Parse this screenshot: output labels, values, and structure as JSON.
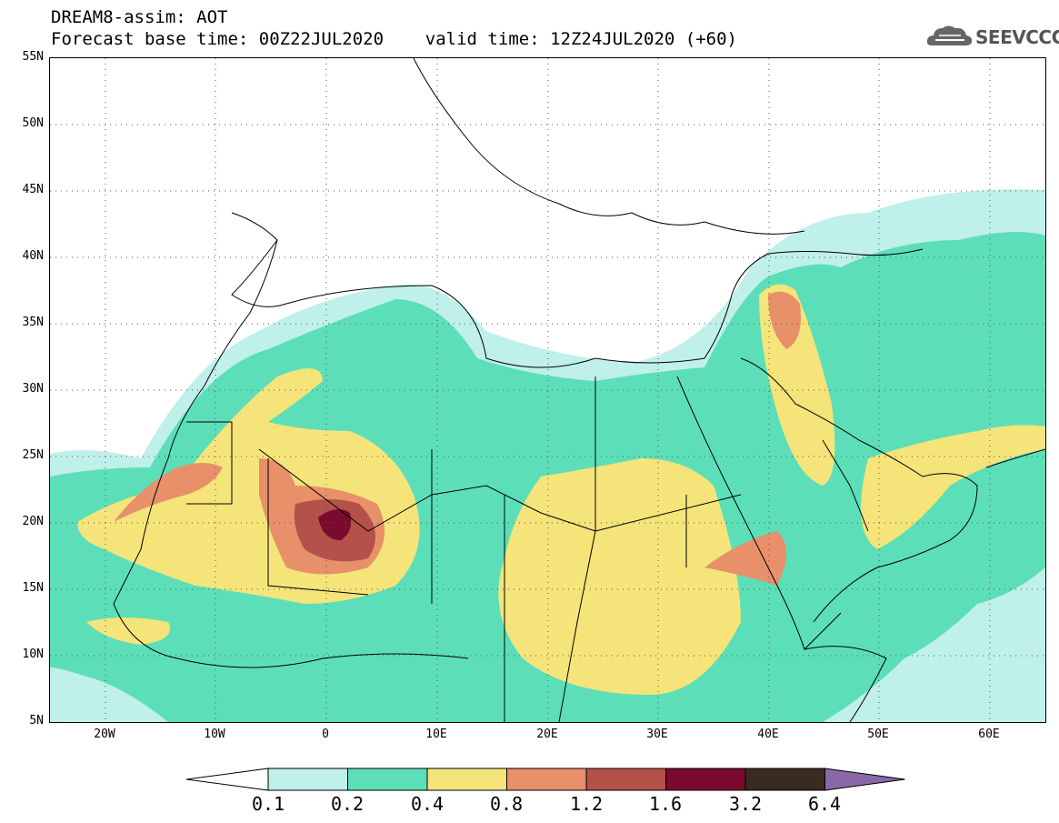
{
  "title_line1": "DREAM8-assim: AOT",
  "title_line2": "Forecast base time: 00Z22JUL2020    valid time: 12Z24JUL2020 (+60)",
  "logo_text": "SEEVCCC",
  "map": {
    "lon_range": [
      -25,
      65
    ],
    "lat_range": [
      5,
      55
    ],
    "lat_labels": [
      "55N",
      "50N",
      "45N",
      "40N",
      "35N",
      "30N",
      "25N",
      "20N",
      "15N",
      "10N",
      "5N"
    ],
    "lon_labels": [
      "20W",
      "10W",
      "0",
      "10E",
      "20E",
      "30E",
      "40E",
      "50E",
      "60E"
    ],
    "gridlines": "dotted"
  },
  "colorbar": {
    "labels": [
      "0.1",
      "0.2",
      "0.4",
      "0.8",
      "1.2",
      "1.6",
      "3.2",
      "6.4"
    ],
    "colors": [
      "#bff0ea",
      "#5cdfb8",
      "#f5e47a",
      "#e8906a",
      "#b4514a",
      "#7a0a2e",
      "#3b2a1e"
    ],
    "under_color": "#ffffff",
    "over_color": "#8a68a8"
  }
}
